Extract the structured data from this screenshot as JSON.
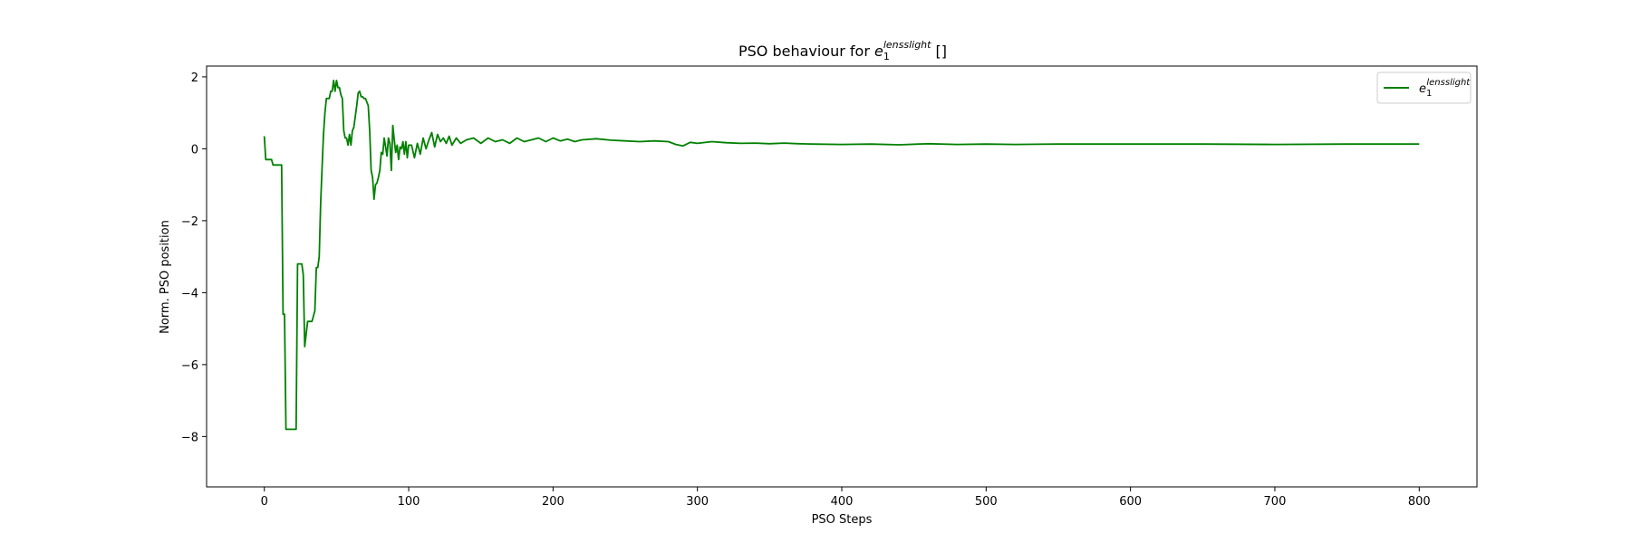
{
  "chart_data": {
    "type": "line",
    "title": {
      "prefix": "PSO behaviour for ",
      "symbol": "e",
      "subscript": "1",
      "superscript": "lensslight",
      "suffix": " []"
    },
    "xlabel": "PSO Steps",
    "ylabel": "Norm. PSO position",
    "xlim": [
      -40,
      840
    ],
    "ylim": [
      -9.4,
      2.3
    ],
    "xticks": [
      0,
      100,
      200,
      300,
      400,
      500,
      600,
      700,
      800
    ],
    "yticks": [
      2,
      0,
      -2,
      -4,
      -6,
      -8
    ],
    "xtick_labels": [
      "0",
      "100",
      "200",
      "300",
      "400",
      "500",
      "600",
      "700",
      "800"
    ],
    "ytick_labels": [
      "2",
      "0",
      "−2",
      "−4",
      "−6",
      "−8"
    ],
    "grid": false,
    "legend_position": "top-right",
    "series": [
      {
        "name": {
          "symbol": "e",
          "subscript": "1",
          "superscript": "lensslight"
        },
        "color": "#008000",
        "x": [
          0,
          1,
          2,
          5,
          6,
          7,
          8,
          12,
          13,
          14,
          15,
          16,
          17,
          18,
          22,
          23,
          26,
          27,
          28,
          30,
          31,
          33,
          35,
          36,
          37,
          38,
          39,
          40,
          41,
          42,
          43,
          44,
          45,
          46,
          47,
          48,
          49,
          50,
          51,
          52,
          53,
          54,
          55,
          56,
          57,
          58,
          59,
          60,
          61,
          62,
          63,
          64,
          65,
          66,
          67,
          68,
          69,
          70,
          72,
          73,
          74,
          75,
          76,
          77,
          78,
          79,
          80,
          81,
          82,
          83,
          84,
          85,
          86,
          87,
          88,
          89,
          90,
          91,
          92,
          93,
          94,
          95,
          96,
          97,
          98,
          99,
          100,
          102,
          104,
          106,
          108,
          110,
          112,
          114,
          116,
          118,
          120,
          122,
          124,
          126,
          128,
          130,
          133,
          136,
          140,
          145,
          150,
          155,
          160,
          165,
          170,
          175,
          180,
          185,
          190,
          195,
          200,
          205,
          210,
          215,
          220,
          230,
          240,
          250,
          260,
          270,
          280,
          285,
          290,
          295,
          300,
          310,
          320,
          330,
          340,
          350,
          360,
          370,
          380,
          400,
          420,
          440,
          460,
          480,
          500,
          520,
          550,
          600,
          650,
          700,
          750,
          800
        ],
        "y": [
          0.35,
          -0.3,
          -0.3,
          -0.3,
          -0.45,
          -0.45,
          -0.45,
          -0.45,
          -4.6,
          -4.6,
          -7.8,
          -7.8,
          -7.8,
          -7.8,
          -7.8,
          -3.2,
          -3.2,
          -3.5,
          -5.5,
          -4.8,
          -4.8,
          -4.8,
          -4.5,
          -3.3,
          -3.3,
          -3.0,
          -1.5,
          -0.5,
          0.4,
          1.0,
          1.4,
          1.4,
          1.4,
          1.6,
          1.6,
          1.9,
          1.6,
          1.9,
          1.7,
          1.7,
          1.5,
          1.4,
          0.5,
          0.3,
          0.3,
          0.1,
          0.4,
          0.1,
          0.5,
          0.6,
          0.9,
          1.2,
          1.55,
          1.6,
          1.45,
          1.45,
          1.4,
          1.4,
          1.2,
          0.5,
          -0.6,
          -0.8,
          -1.4,
          -1.0,
          -0.95,
          -0.8,
          -0.6,
          -0.1,
          -0.15,
          0.3,
          0.05,
          -0.2,
          0.3,
          0.15,
          -0.6,
          0.65,
          0.25,
          -0.1,
          0.1,
          -0.3,
          0.05,
          0.0,
          0.2,
          -0.15,
          0.2,
          -0.25,
          0.1,
          0.1,
          -0.25,
          0.15,
          -0.15,
          0.3,
          0.0,
          0.25,
          0.45,
          0.05,
          0.4,
          0.2,
          0.3,
          0.15,
          0.35,
          0.1,
          0.3,
          0.15,
          0.25,
          0.3,
          0.15,
          0.3,
          0.2,
          0.25,
          0.15,
          0.3,
          0.2,
          0.25,
          0.3,
          0.2,
          0.3,
          0.22,
          0.27,
          0.2,
          0.25,
          0.28,
          0.24,
          0.22,
          0.2,
          0.22,
          0.2,
          0.12,
          0.08,
          0.18,
          0.15,
          0.2,
          0.17,
          0.15,
          0.16,
          0.14,
          0.16,
          0.14,
          0.13,
          0.12,
          0.13,
          0.11,
          0.14,
          0.12,
          0.13,
          0.12,
          0.13,
          0.13,
          0.13,
          0.12,
          0.13,
          0.13
        ]
      }
    ]
  }
}
